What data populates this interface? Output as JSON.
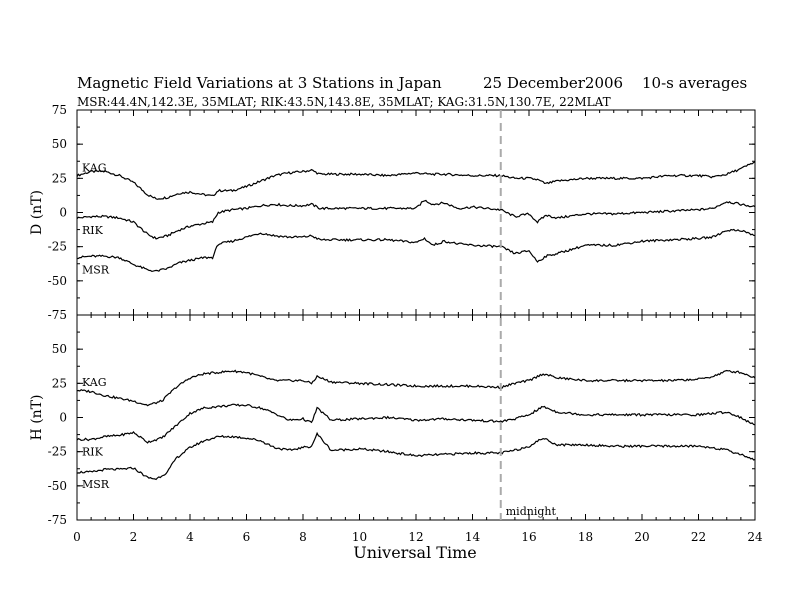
{
  "chart_data": {
    "type": "line",
    "title_left": "Magnetic Field Variations at 3 Stations in Japan",
    "title_date": "25  December2006",
    "title_right": "10-s averages",
    "subtitle": "MSR:44.4N,142.3E, 35MLAT;   RIK:43.5N,143.8E, 35MLAT;   KAG:31.5N,130.7E, 22MLAT",
    "xlabel": "Universal Time",
    "xlim": [
      0,
      24
    ],
    "xticks": [
      "0",
      "2",
      "4",
      "6",
      "8",
      "10",
      "12",
      "14",
      "16",
      "18",
      "20",
      "22",
      "24"
    ],
    "marker": {
      "x": 15,
      "label": "midnight"
    },
    "panels": [
      {
        "ylabel": "D (nT)",
        "ylim": [
          -75,
          75
        ],
        "yticks": [
          "75",
          "50",
          "25",
          "0",
          "-25",
          "-50",
          "-75"
        ],
        "series": [
          {
            "name": "KAG",
            "x": [
              0,
              0.5,
              1,
              1.5,
              2,
              2.5,
              2.8,
              3.2,
              3.6,
              4,
              4.5,
              4.8,
              5,
              5.5,
              6,
              6.5,
              7,
              7.5,
              8,
              8.3,
              8.6,
              9,
              10,
              11,
              12,
              12.5,
              13,
              14,
              15,
              15.5,
              16,
              16.3,
              16.6,
              17,
              18,
              19,
              20,
              21,
              22,
              22.5,
              23,
              23.5,
              24
            ],
            "y": [
              27,
              30,
              30,
              27,
              22,
              13,
              10,
              11,
              14,
              15,
              13,
              12,
              16,
              16,
              19,
              23,
              27,
              29,
              30,
              31,
              28,
              28,
              28,
              27,
              29,
              28,
              28,
              27,
              27,
              25,
              25,
              24,
              21,
              23,
              25,
              25,
              25,
              27,
              27,
              26,
              28,
              32,
              37
            ]
          },
          {
            "name": "RIK",
            "x": [
              0,
              0.5,
              1,
              1.5,
              2,
              2.5,
              2.8,
              3.2,
              3.6,
              4,
              4.5,
              4.8,
              5,
              5.5,
              6,
              6.5,
              7,
              7.5,
              8,
              8.3,
              8.6,
              9,
              10,
              11,
              12,
              12.3,
              12.6,
              13,
              13.5,
              14,
              15,
              15.5,
              16,
              16.3,
              16.6,
              17,
              18,
              19,
              20,
              21,
              22,
              22.5,
              23,
              23.5,
              24
            ],
            "y": [
              -4,
              -3,
              -3,
              -4,
              -7,
              -16,
              -19,
              -17,
              -13,
              -10,
              -8,
              -7,
              0,
              2,
              3,
              5,
              6,
              5,
              5,
              6,
              3,
              3,
              3,
              3,
              3,
              9,
              6,
              7,
              3,
              4,
              2,
              -3,
              -1,
              -7,
              -2,
              -4,
              -1,
              -1,
              0,
              1,
              2,
              3,
              8,
              6,
              4
            ]
          },
          {
            "name": "MSR",
            "x": [
              0,
              0.5,
              1,
              1.5,
              2,
              2.5,
              2.8,
              3.2,
              3.6,
              4,
              4.5,
              4.8,
              5,
              5.5,
              6,
              6.5,
              7,
              7.5,
              8,
              8.3,
              8.6,
              9,
              10,
              11,
              12,
              12.3,
              12.6,
              13,
              13.5,
              14,
              15,
              15.5,
              16,
              16.3,
              16.6,
              17,
              18,
              19,
              20,
              21,
              22,
              22.5,
              23,
              23.5,
              24
            ],
            "y": [
              -33,
              -32,
              -32,
              -33,
              -38,
              -42,
              -43,
              -41,
              -37,
              -35,
              -33,
              -33,
              -23,
              -21,
              -18,
              -15,
              -17,
              -18,
              -18,
              -17,
              -20,
              -20,
              -20,
              -20,
              -22,
              -19,
              -24,
              -21,
              -23,
              -24,
              -25,
              -30,
              -28,
              -36,
              -32,
              -30,
              -24,
              -24,
              -21,
              -20,
              -19,
              -18,
              -13,
              -13,
              -17
            ]
          }
        ]
      },
      {
        "ylabel": "H (nT)",
        "ylim": [
          -75,
          75
        ],
        "yticks": [
          "75",
          "50",
          "25",
          "0",
          "-25",
          "-50",
          "-75"
        ],
        "series": [
          {
            "name": "KAG",
            "x": [
              0,
              0.5,
              1,
              1.5,
              2,
              2.5,
              3,
              3.5,
              4,
              4.5,
              5,
              5.5,
              6,
              6.5,
              7,
              7.5,
              8,
              8.3,
              8.5,
              9,
              10,
              11,
              12,
              13,
              14,
              15,
              15.5,
              16,
              16.5,
              17,
              18,
              19,
              20,
              21,
              22,
              22.5,
              23,
              23.5,
              24
            ],
            "y": [
              20,
              19,
              16,
              14,
              12,
              9,
              12,
              22,
              29,
              32,
              33,
              34,
              33,
              30,
              27,
              27,
              27,
              25,
              30,
              26,
              25,
              24,
              23,
              23,
              23,
              22,
              25,
              27,
              32,
              29,
              27,
              27,
              27,
              27,
              28,
              30,
              34,
              33,
              29
            ]
          },
          {
            "name": "RIK",
            "x": [
              0,
              0.5,
              1,
              1.5,
              2,
              2.5,
              3,
              3.5,
              4,
              4.5,
              5,
              5.5,
              6,
              6.5,
              7,
              7.5,
              8,
              8.3,
              8.5,
              9,
              10,
              11,
              12,
              13,
              14,
              15,
              15.5,
              16,
              16.5,
              17,
              18,
              19,
              20,
              21,
              22,
              22.5,
              23,
              23.5,
              24
            ],
            "y": [
              -16,
              -16,
              -14,
              -13,
              -11,
              -18,
              -15,
              -6,
              3,
              7,
              8,
              9,
              9,
              7,
              3,
              -2,
              -1,
              -4,
              7,
              -2,
              -1,
              0,
              -2,
              -1,
              -2,
              -3,
              -1,
              2,
              8,
              4,
              2,
              2,
              2,
              2,
              2,
              3,
              4,
              0,
              -6
            ]
          },
          {
            "name": "MSR",
            "x": [
              0,
              0.5,
              1,
              1.5,
              2,
              2.5,
              2.8,
              3.2,
              3.5,
              4,
              4.5,
              5,
              5.5,
              6,
              6.5,
              7,
              7.5,
              8,
              8.3,
              8.5,
              9,
              10,
              11,
              12,
              13,
              14,
              15,
              15.5,
              16,
              16.5,
              17,
              18,
              19,
              20,
              21,
              22,
              22.5,
              23,
              23.5,
              24
            ],
            "y": [
              -40,
              -40,
              -38,
              -38,
              -37,
              -44,
              -45,
              -40,
              -30,
              -22,
              -17,
              -14,
              -14,
              -15,
              -17,
              -22,
              -24,
              -22,
              -21,
              -12,
              -24,
              -23,
              -25,
              -28,
              -27,
              -26,
              -26,
              -24,
              -21,
              -15,
              -20,
              -20,
              -21,
              -21,
              -21,
              -21,
              -22,
              -24,
              -27,
              -31
            ]
          }
        ]
      }
    ]
  }
}
